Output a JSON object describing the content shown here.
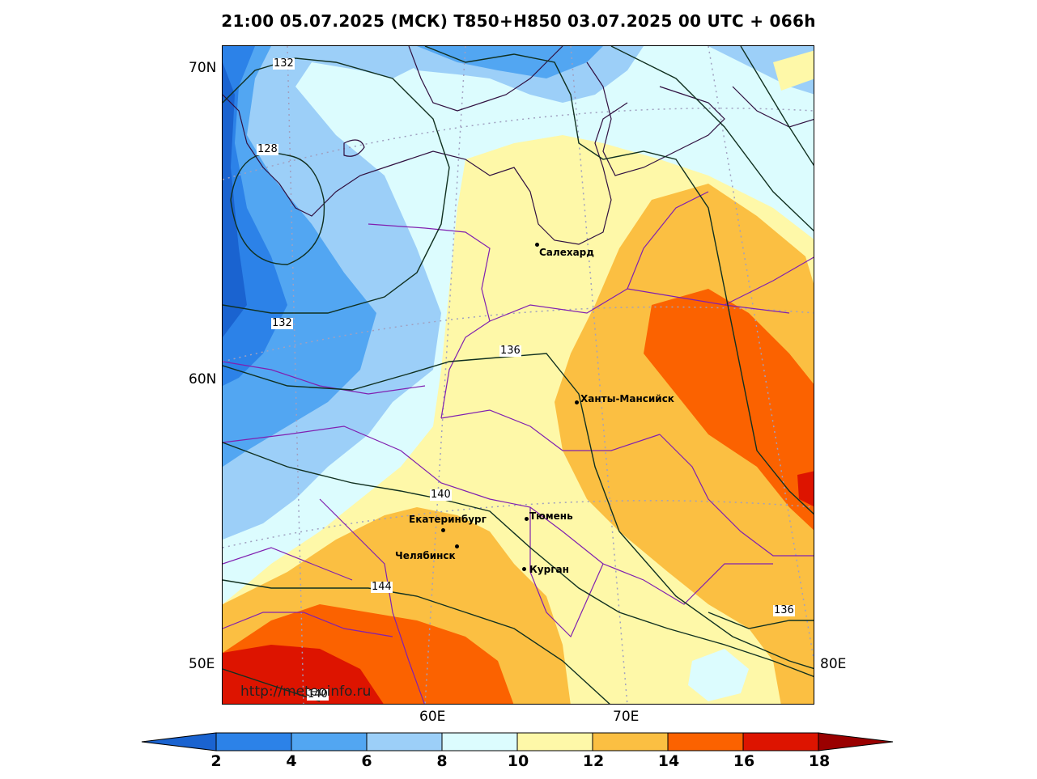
{
  "title": "21:00 05.07.2025 (МСК) T850+H850 03.07.2025 00 UTC + 066h",
  "watermark": "http://meteoinfo.ru",
  "axes": {
    "lat_labels": [
      "70N",
      "60N",
      "50E"
    ],
    "lon_labels": [
      "60E",
      "70E",
      "80E"
    ]
  },
  "cities": [
    {
      "name": "Салехард"
    },
    {
      "name": "Ханты-Мансийск"
    },
    {
      "name": "Тюмень"
    },
    {
      "name": "Екатеринбург"
    },
    {
      "name": "Челябинск"
    },
    {
      "name": "Курган"
    }
  ],
  "contour_labels": [
    "132",
    "128",
    "132",
    "136",
    "140",
    "144",
    "136",
    "140"
  ],
  "colorbar": {
    "ticks": [
      "2",
      "4",
      "6",
      "8",
      "10",
      "12",
      "14",
      "16",
      "18"
    ],
    "colors": [
      "#1a63d0",
      "#2c82e8",
      "#52a6f2",
      "#9ccff8",
      "#dcfcfe",
      "#fef8a8",
      "#fbbf42",
      "#fb6200",
      "#dd1400",
      "#9a0000"
    ]
  }
}
